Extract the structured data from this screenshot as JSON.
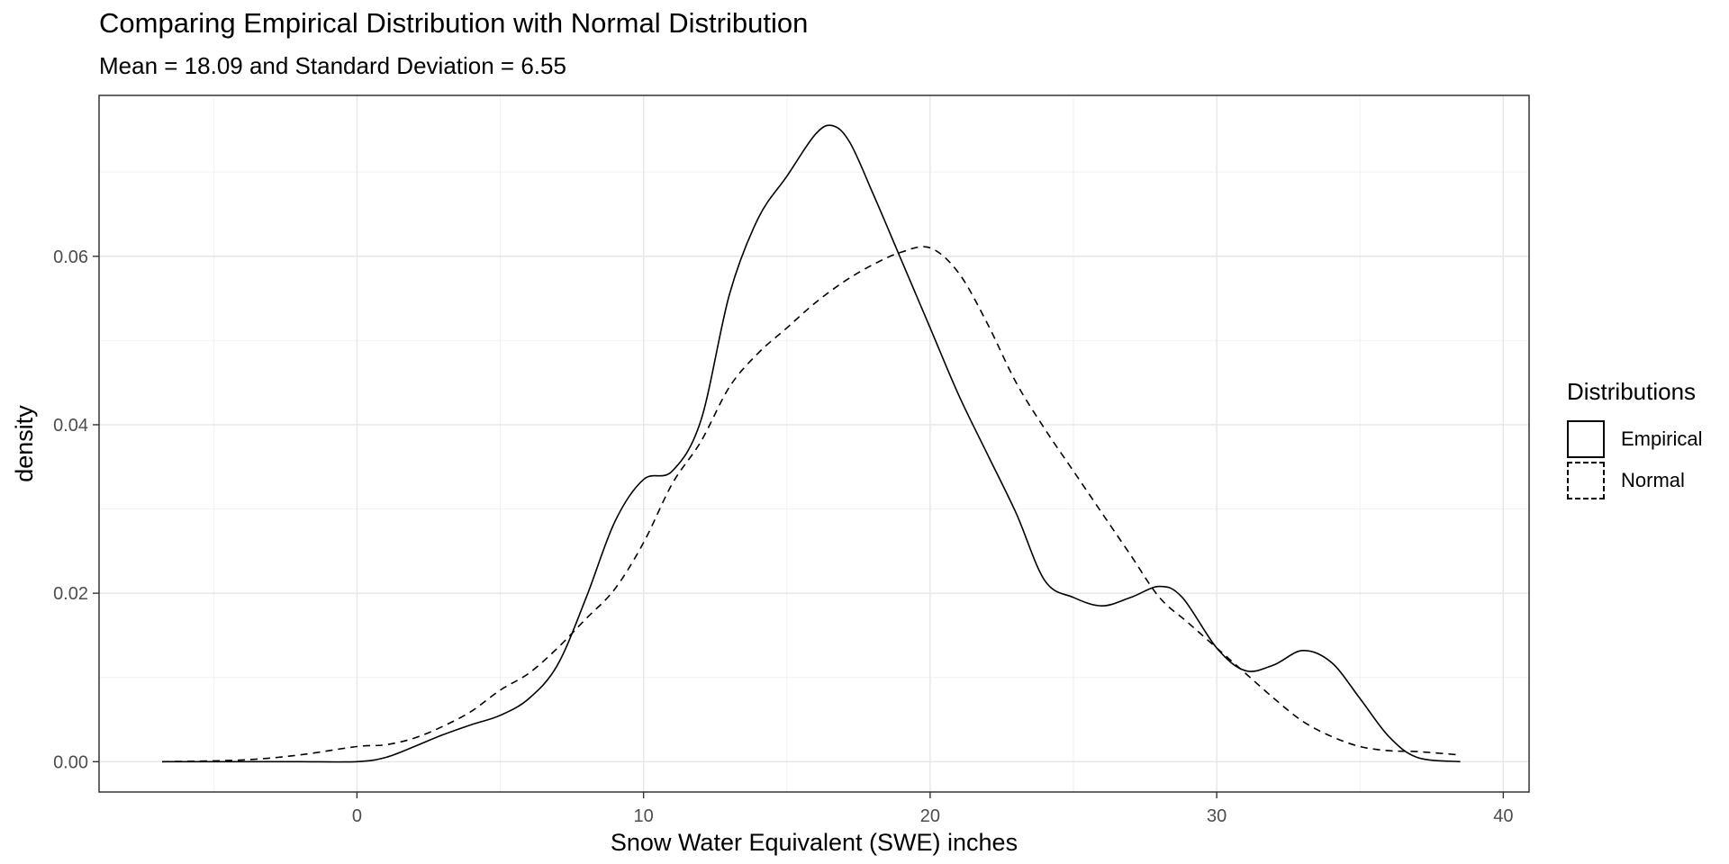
{
  "chart_data": {
    "type": "line",
    "title": "Comparing Empirical Distribution with Normal Distribution",
    "subtitle": "Mean = 18.09 and Standard Deviation = 6.55",
    "xlabel": "Snow Water Equivalent (SWE) inches",
    "ylabel": "density",
    "xlim": [
      -9.0,
      40.9
    ],
    "ylim": [
      -0.0036,
      0.0791
    ],
    "x_ticks": [
      0,
      10,
      20,
      30,
      40
    ],
    "x_tick_labels": [
      "0",
      "10",
      "20",
      "30",
      "40"
    ],
    "y_ticks": [
      0,
      0.02,
      0.04,
      0.06
    ],
    "y_tick_labels": [
      "0.00",
      "0.02",
      "0.04",
      "0.06"
    ],
    "grid": true,
    "legend": {
      "title": "Distributions",
      "position": "right"
    },
    "series": [
      {
        "name": "Empirical",
        "line_style": "solid",
        "x": [
          -6.8,
          -4,
          -2,
          0,
          1,
          2,
          3,
          4,
          5,
          6,
          7,
          8,
          9,
          10,
          11,
          12,
          13,
          14,
          15,
          16,
          16.6,
          17.2,
          18,
          19,
          20,
          21,
          22,
          23,
          24,
          25,
          26,
          27,
          28,
          28.8,
          30,
          31,
          32,
          33,
          34,
          35,
          36,
          37,
          38.5
        ],
        "values": [
          0.0,
          0.0,
          0.0,
          0.0,
          0.0005,
          0.0018,
          0.0032,
          0.0044,
          0.0055,
          0.0075,
          0.0115,
          0.0195,
          0.0285,
          0.0335,
          0.0345,
          0.0405,
          0.0555,
          0.0645,
          0.0695,
          0.0745,
          0.0755,
          0.0735,
          0.0675,
          0.0595,
          0.0515,
          0.0435,
          0.0365,
          0.0295,
          0.0215,
          0.0195,
          0.0185,
          0.0195,
          0.0208,
          0.0195,
          0.0135,
          0.0108,
          0.0115,
          0.0132,
          0.0118,
          0.0075,
          0.003,
          0.0005,
          0.0
        ]
      },
      {
        "name": "Normal",
        "line_style": "dashed",
        "x": [
          -6.8,
          -4,
          -2,
          0,
          1,
          2,
          3,
          4,
          5,
          6,
          7,
          8,
          9,
          10,
          11,
          12,
          13,
          14,
          15,
          16,
          17,
          18,
          19,
          20,
          21,
          22,
          23,
          24,
          25,
          26,
          27,
          28,
          29,
          30,
          31,
          32,
          33,
          34,
          35,
          36,
          37,
          38.5
        ],
        "values": [
          0.0,
          0.0002,
          0.0008,
          0.0018,
          0.002,
          0.0028,
          0.0042,
          0.006,
          0.0085,
          0.0105,
          0.0135,
          0.017,
          0.0205,
          0.026,
          0.033,
          0.038,
          0.0445,
          0.0485,
          0.0515,
          0.0545,
          0.057,
          0.059,
          0.0605,
          0.061,
          0.058,
          0.052,
          0.045,
          0.0395,
          0.0345,
          0.0295,
          0.0245,
          0.0195,
          0.0165,
          0.0135,
          0.0105,
          0.0075,
          0.0048,
          0.003,
          0.0018,
          0.0013,
          0.0012,
          0.0008
        ]
      }
    ]
  }
}
